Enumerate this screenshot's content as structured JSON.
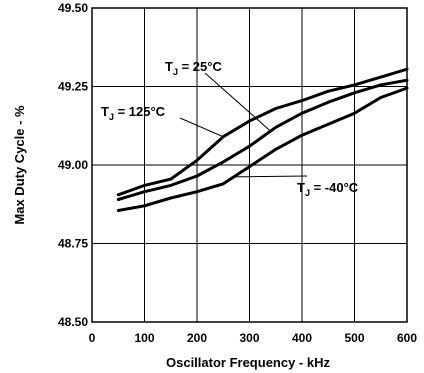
{
  "chart_data": {
    "type": "line",
    "xlabel": "Oscillator Frequency - kHz",
    "ylabel": "Max Duty Cycle - %",
    "xlim": [
      0,
      600
    ],
    "ylim": [
      48.5,
      49.5
    ],
    "x_ticks": [
      "0",
      "100",
      "200",
      "300",
      "400",
      "500",
      "600"
    ],
    "y_ticks": [
      "48.50",
      "48.75",
      "49.00",
      "49.25",
      "49.50"
    ],
    "grid": true,
    "series": [
      {
        "name": "T_J = 25°C",
        "x": [
          50,
          100,
          150,
          200,
          250,
          300,
          350,
          400,
          450,
          500,
          550,
          600
        ],
        "y": [
          48.89,
          48.915,
          48.935,
          48.965,
          49.01,
          49.06,
          49.12,
          49.165,
          49.2,
          49.23,
          49.255,
          49.27
        ]
      },
      {
        "name": "T_J = 125°C",
        "x": [
          50,
          100,
          150,
          200,
          250,
          300,
          350,
          400,
          450,
          500,
          550,
          600
        ],
        "y": [
          48.905,
          48.935,
          48.955,
          49.015,
          49.09,
          49.14,
          49.18,
          49.205,
          49.235,
          49.255,
          49.28,
          49.305
        ]
      },
      {
        "name": "T_J = -40°C",
        "x": [
          50,
          100,
          150,
          200,
          250,
          300,
          350,
          400,
          450,
          500,
          550,
          600
        ],
        "y": [
          48.855,
          48.87,
          48.895,
          48.915,
          48.94,
          48.995,
          49.05,
          49.095,
          49.13,
          49.165,
          49.215,
          49.245
        ]
      }
    ],
    "annotations": [
      {
        "pre": "T",
        "sub": "J",
        "post": " = 25°C"
      },
      {
        "pre": "T",
        "sub": "J",
        "post": " = 125°C"
      },
      {
        "pre": "T",
        "sub": "J",
        "post": " = -40°C"
      }
    ]
  }
}
